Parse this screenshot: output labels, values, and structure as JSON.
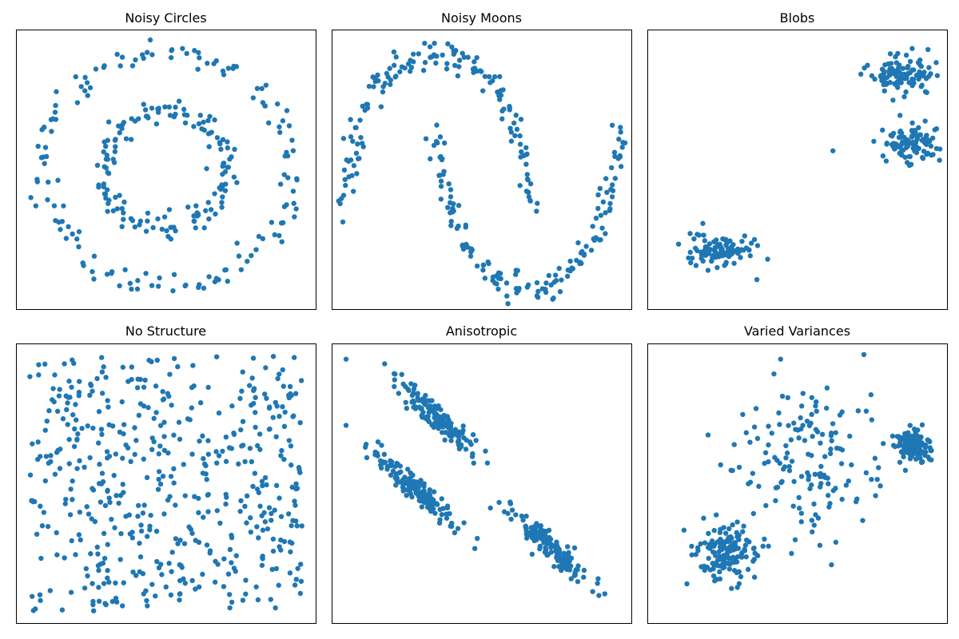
{
  "figure": {
    "panels": [
      {
        "title": "Noisy Circles"
      },
      {
        "title": "Noisy Moons"
      },
      {
        "title": "Blobs"
      },
      {
        "title": "No Structure"
      },
      {
        "title": "Anisotropic"
      },
      {
        "title": "Varied Variances"
      }
    ]
  },
  "colors": {
    "points": "#1f77b4",
    "axes_frame": "#000000",
    "background": "#ffffff"
  },
  "chart_data": [
    {
      "type": "scatter",
      "title": "Noisy Circles",
      "xlim": [
        -1.2,
        1.2
      ],
      "ylim": [
        -1.2,
        1.2
      ],
      "grid": false,
      "axis_ticks": false,
      "generator": {
        "kind": "circles",
        "n_outer": 150,
        "r_outer": 1.0,
        "n_inner": 150,
        "r_inner": 0.5,
        "noise": 0.05,
        "seed": 11
      }
    },
    {
      "type": "scatter",
      "title": "Noisy Moons",
      "xlim": [
        -1.15,
        2.15
      ],
      "ylim": [
        -0.65,
        1.15
      ],
      "grid": false,
      "axis_ticks": false,
      "generator": {
        "kind": "moons",
        "n_per_moon": 150,
        "noise": 0.05,
        "seed": 23
      }
    },
    {
      "type": "scatter",
      "title": "Blobs",
      "xlim": [
        -10.0,
        7.0
      ],
      "ylim": [
        -10.5,
        8.0
      ],
      "grid": false,
      "axis_ticks": false,
      "generator": {
        "kind": "blobs",
        "seed": 37,
        "clusters": [
          {
            "center": [
              -5.8,
              -6.5
            ],
            "std": [
              0.9,
              0.55
            ],
            "n": 100
          },
          {
            "center": [
              4.5,
              5.0
            ],
            "std": [
              0.9,
              0.6
            ],
            "n": 100
          },
          {
            "center": [
              5.0,
              0.5
            ],
            "std": [
              0.9,
              0.6
            ],
            "n": 100
          }
        ],
        "extra_points": [
          [
            0.5,
            0.0
          ],
          [
            -3.8,
            -8.5
          ]
        ]
      }
    },
    {
      "type": "scatter",
      "title": "No Structure",
      "xlim": [
        -0.05,
        1.05
      ],
      "ylim": [
        -0.05,
        1.05
      ],
      "grid": false,
      "axis_ticks": false,
      "generator": {
        "kind": "uniform",
        "n": 500,
        "seed": 41
      }
    },
    {
      "type": "scatter",
      "title": "Anisotropic",
      "xlim": [
        -6.0,
        6.5
      ],
      "ylim": [
        -9.0,
        3.5
      ],
      "grid": false,
      "axis_ticks": false,
      "generator": {
        "kind": "anisotropic",
        "seed": 53,
        "clusters": [
          {
            "center": [
              -1.7,
              0.3
            ],
            "u_std": 1.15,
            "v_std": 0.22,
            "n": 150
          },
          {
            "center": [
              -2.6,
              -2.9
            ],
            "u_std": 1.15,
            "v_std": 0.22,
            "n": 150
          },
          {
            "center": [
              3.0,
              -5.5
            ],
            "u_std": 1.15,
            "v_std": 0.22,
            "n": 150
          }
        ],
        "direction": [
          0.7,
          -0.72
        ],
        "extra_points": [
          [
            -5.4,
            2.8
          ]
        ]
      }
    },
    {
      "type": "scatter",
      "title": "Varied Variances",
      "xlim": [
        -12.0,
        7.0
      ],
      "ylim": [
        -10.0,
        8.0
      ],
      "grid": false,
      "axis_ticks": false,
      "generator": {
        "kind": "blobs",
        "seed": 67,
        "clusters": [
          {
            "center": [
              -7.0,
              -5.3
            ],
            "std": [
              1.0,
              0.9
            ],
            "n": 150
          },
          {
            "center": [
              -2.0,
              0.5
            ],
            "std": [
              2.4,
              2.4
            ],
            "n": 150
          },
          {
            "center": [
              4.8,
              1.5
            ],
            "std": [
              0.5,
              0.45
            ],
            "n": 150
          }
        ]
      }
    }
  ]
}
